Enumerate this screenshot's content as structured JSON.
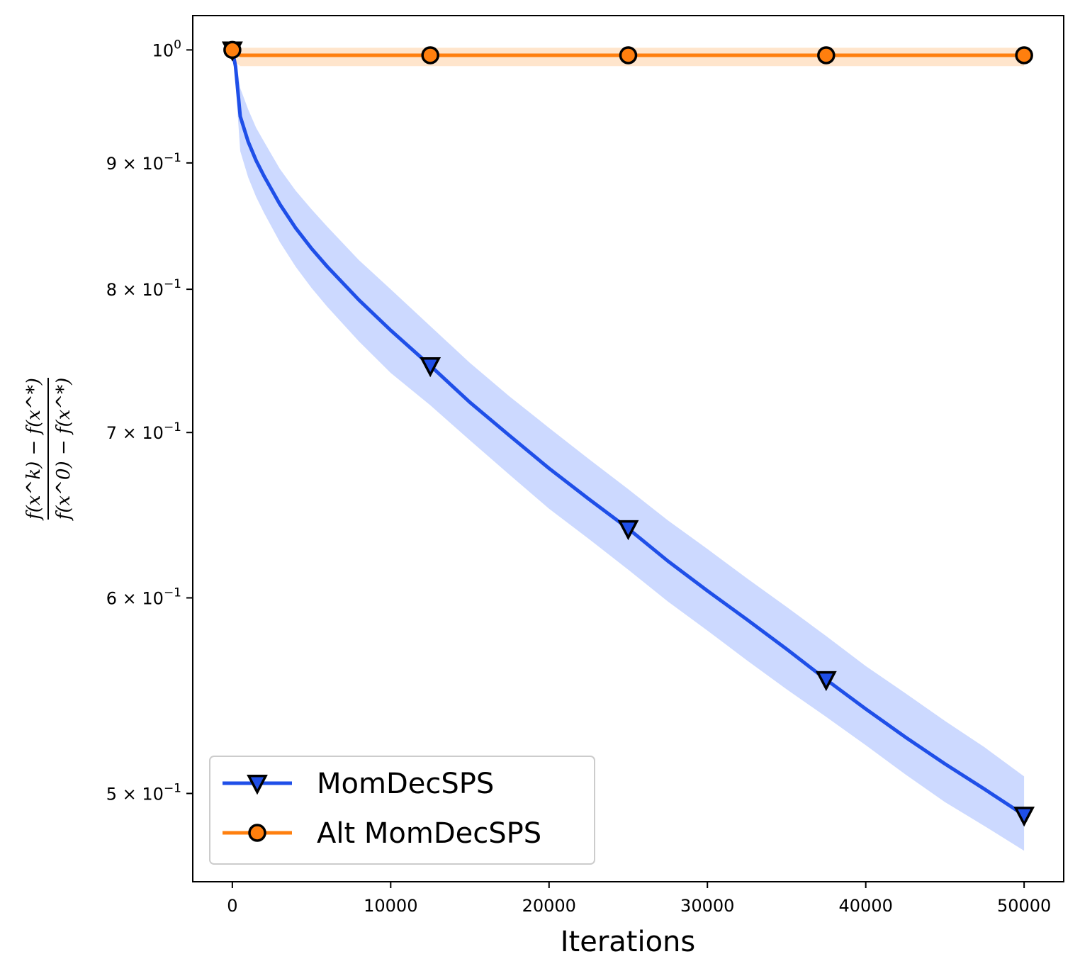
{
  "chart_data": {
    "type": "line",
    "xlabel": "Iterations",
    "ylabel_numerator": "f(x^k) − f(x^*)",
    "ylabel_denominator": "f(x^0) − f(x^*)",
    "y_scale": "log",
    "xlim": [
      -2500,
      52500
    ],
    "ylim": [
      0.4605,
      1.0325
    ],
    "x_ticks": [
      0,
      10000,
      20000,
      30000,
      40000,
      50000
    ],
    "x_tick_labels": [
      "0",
      "10000",
      "20000",
      "30000",
      "40000",
      "50000"
    ],
    "y_ticks": [
      {
        "value": 1.0,
        "mantissa": "",
        "base": "10",
        "exp": "0"
      },
      {
        "value": 0.9,
        "mantissa": "9 × ",
        "base": "10",
        "exp": "−1"
      },
      {
        "value": 0.8,
        "mantissa": "8 × ",
        "base": "10",
        "exp": "−1"
      },
      {
        "value": 0.7,
        "mantissa": "7 × ",
        "base": "10",
        "exp": "−1"
      },
      {
        "value": 0.6,
        "mantissa": "6 × ",
        "base": "10",
        "exp": "−1"
      },
      {
        "value": 0.5,
        "mantissa": "5 × ",
        "base": "10",
        "exp": "−1"
      }
    ],
    "grid": false,
    "legend_position": "lower-left",
    "series": [
      {
        "name": "MomDecSPS",
        "color": "#1f4fe8",
        "band_color": "#ccd9ff",
        "marker": "triangle-down",
        "x": [
          0,
          200,
          500,
          1000,
          1500,
          2000,
          3000,
          4000,
          5000,
          6000,
          8000,
          10000,
          12500,
          15000,
          17500,
          20000,
          22500,
          25000,
          27500,
          30000,
          32500,
          35000,
          37500,
          40000,
          42500,
          45000,
          47500,
          50000
        ],
        "y": [
          1.0,
          0.985,
          0.94,
          0.918,
          0.902,
          0.889,
          0.866,
          0.847,
          0.831,
          0.817,
          0.792,
          0.77,
          0.745,
          0.72,
          0.698,
          0.677,
          0.658,
          0.64,
          0.621,
          0.604,
          0.588,
          0.572,
          0.556,
          0.541,
          0.527,
          0.514,
          0.502,
          0.49
        ],
        "y_lower": [
          1.0,
          0.97,
          0.91,
          0.888,
          0.872,
          0.859,
          0.836,
          0.817,
          0.801,
          0.787,
          0.762,
          0.74,
          0.718,
          0.695,
          0.673,
          0.652,
          0.634,
          0.616,
          0.598,
          0.582,
          0.566,
          0.551,
          0.537,
          0.523,
          0.509,
          0.496,
          0.485,
          0.474
        ],
        "y_upper": [
          1.0,
          0.995,
          0.965,
          0.946,
          0.93,
          0.918,
          0.895,
          0.877,
          0.862,
          0.848,
          0.822,
          0.8,
          0.773,
          0.747,
          0.724,
          0.703,
          0.683,
          0.664,
          0.645,
          0.628,
          0.611,
          0.595,
          0.579,
          0.563,
          0.549,
          0.535,
          0.522,
          0.508
        ],
        "marker_x": [
          0,
          12500,
          25000,
          37500,
          50000
        ],
        "marker_y": [
          1.0,
          0.745,
          0.64,
          0.556,
          0.49
        ]
      },
      {
        "name": "Alt MomDecSPS",
        "color": "#ff7f0e",
        "band_color": "#ffe5cc",
        "marker": "circle",
        "x": [
          0,
          250,
          500,
          12500,
          25000,
          37500,
          50000
        ],
        "y": [
          1.0,
          0.998,
          0.995,
          0.995,
          0.995,
          0.995,
          0.995
        ],
        "y_lower": [
          0.99,
          0.988,
          0.985,
          0.985,
          0.985,
          0.985,
          0.985
        ],
        "y_upper": [
          1.002,
          1.002,
          1.002,
          1.002,
          1.002,
          1.002,
          1.002
        ],
        "marker_x": [
          0,
          12500,
          25000,
          37500,
          50000
        ],
        "marker_y": [
          1.0,
          0.995,
          0.995,
          0.995,
          0.995
        ]
      }
    ]
  }
}
